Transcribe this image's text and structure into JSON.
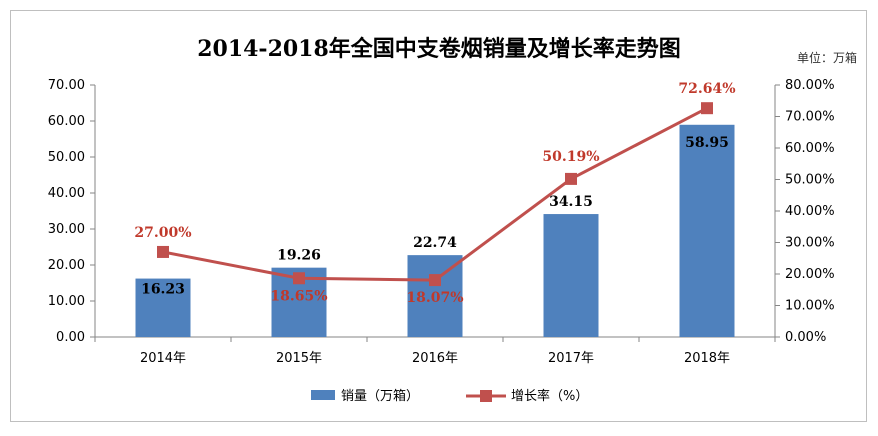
{
  "chart_data": {
    "type": "bar",
    "title": "2014-2018年全国中支卷烟销量及增长率走势图",
    "unit_note": "单位：万箱",
    "categories": [
      "2014年",
      "2015年",
      "2016年",
      "2017年",
      "2018年"
    ],
    "y_left_ticks": [
      "0.00",
      "10.00",
      "20.00",
      "30.00",
      "40.00",
      "50.00",
      "60.00",
      "70.00"
    ],
    "y_right_ticks": [
      "0.00%",
      "10.00%",
      "20.00%",
      "30.00%",
      "40.00%",
      "50.00%",
      "60.00%",
      "70.00%",
      "80.00%"
    ],
    "ylim_left": [
      0,
      70
    ],
    "ylim_right": [
      0,
      80
    ],
    "legend_position": "bottom",
    "grid": false,
    "series": [
      {
        "name": "销量（万箱）",
        "type": "bar",
        "axis": "left",
        "color": "#4f81bd",
        "values": [
          16.23,
          19.26,
          22.74,
          34.15,
          58.95
        ],
        "labels": [
          "16.23",
          "19.26",
          "22.74",
          "34.15",
          "58.95"
        ]
      },
      {
        "name": "增长率（%）",
        "type": "line",
        "axis": "right",
        "color": "#c0504d",
        "values": [
          27.0,
          18.65,
          18.07,
          50.19,
          72.64
        ],
        "labels": [
          "27.00%",
          "18.65%",
          "18.07%",
          "50.19%",
          "72.64%"
        ]
      }
    ]
  }
}
